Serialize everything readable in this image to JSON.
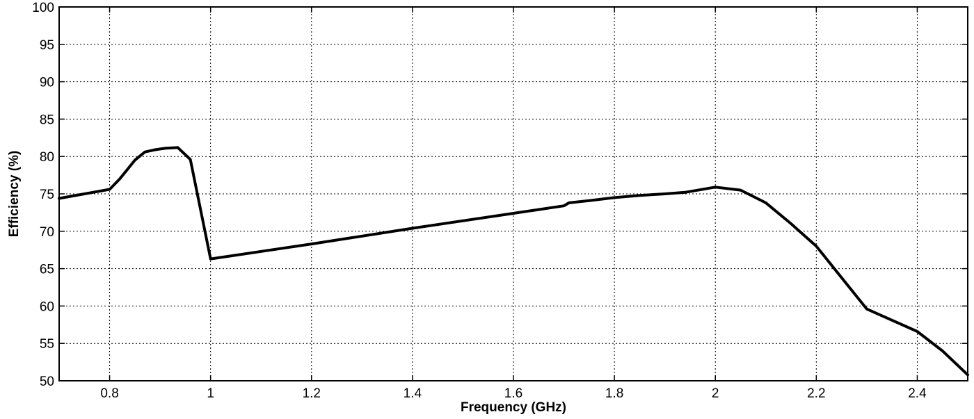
{
  "chart_data": {
    "type": "line",
    "title": "",
    "xlabel": "Frequency (GHz)",
    "ylabel": "Efficiency (%)",
    "xlim": [
      0.7,
      2.5
    ],
    "ylim": [
      50,
      100
    ],
    "xticks": [
      0.8,
      1,
      1.2,
      1.4,
      1.6,
      1.8,
      2,
      2.2,
      2.4
    ],
    "xtick_labels": [
      "0.8",
      "1",
      "1.2",
      "1.4",
      "1.6",
      "1.8",
      "2",
      "2.2",
      "2.4"
    ],
    "yticks": [
      50,
      55,
      60,
      65,
      70,
      75,
      80,
      85,
      90,
      95,
      100
    ],
    "ytick_labels": [
      "50",
      "55",
      "60",
      "65",
      "70",
      "75",
      "80",
      "85",
      "90",
      "95",
      "100"
    ],
    "grid": true,
    "series": [
      {
        "color": "#000000",
        "x": [
          0.7,
          0.8,
          0.82,
          0.85,
          0.87,
          0.89,
          0.91,
          0.935,
          0.96,
          1.0,
          1.2,
          1.4,
          1.6,
          1.7,
          1.71,
          1.75,
          1.8,
          1.85,
          1.9,
          1.94,
          2.0,
          2.05,
          2.1,
          2.15,
          2.2,
          2.3,
          2.4,
          2.45,
          2.5
        ],
        "y": [
          74.4,
          75.6,
          77.0,
          79.5,
          80.6,
          80.9,
          81.1,
          81.2,
          79.6,
          66.3,
          68.3,
          70.4,
          72.4,
          73.4,
          73.8,
          74.1,
          74.5,
          74.8,
          75.0,
          75.2,
          75.9,
          75.5,
          73.8,
          71.0,
          68.0,
          59.6,
          56.6,
          54.0,
          50.8
        ]
      }
    ]
  }
}
